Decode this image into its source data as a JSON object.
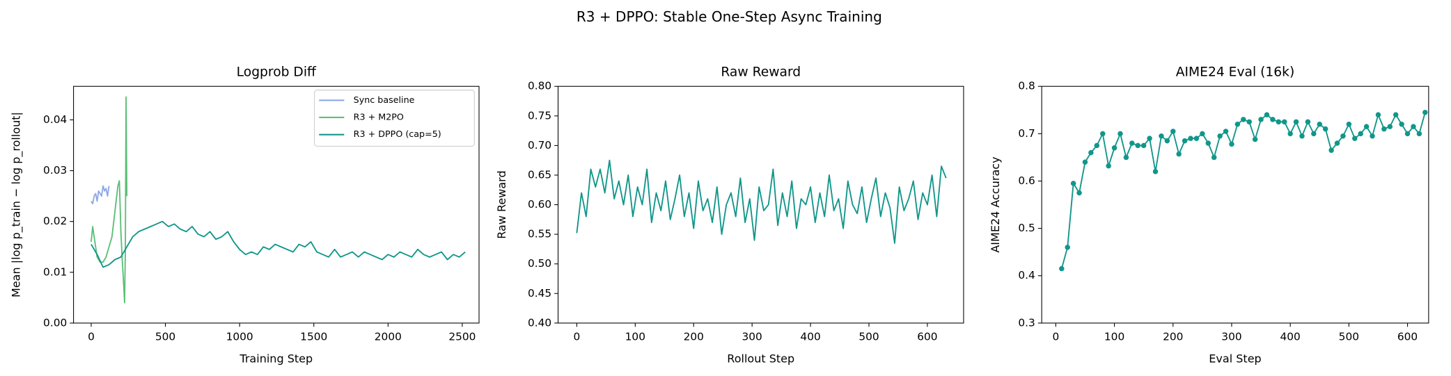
{
  "suptitle": "R3 + DPPO: Stable One-Step Async Training",
  "chart_data": [
    {
      "type": "line",
      "title": "Logprob Diff",
      "xlabel": "Training Step",
      "ylabel": "Mean |log p_train − log p_rollout|",
      "xlim": [
        -119,
        2613
      ],
      "ylim": [
        0,
        0.0466
      ],
      "xticks": [
        0,
        500,
        1000,
        1500,
        2000,
        2500
      ],
      "yticks": [
        {
          "value": 0,
          "label": "0.00"
        },
        0.01,
        0.02,
        0.03,
        0.04
      ],
      "legend": "upper right",
      "series": [
        {
          "name": "Sync baseline",
          "color": "#8fa8e8",
          "x": [
            0,
            10,
            20,
            30,
            40,
            50,
            60,
            70,
            80,
            90,
            100,
            110,
            120
          ],
          "values": [
            0.024,
            0.0235,
            0.025,
            0.0255,
            0.024,
            0.026,
            0.0255,
            0.025,
            0.027,
            0.026,
            0.0265,
            0.025,
            0.027
          ]
        },
        {
          "name": "R3 + M2PO",
          "color": "#5cbf78",
          "x": [
            0,
            10,
            20,
            40,
            60,
            80,
            100,
            120,
            140,
            160,
            180,
            190,
            200,
            210,
            220,
            225,
            230,
            235,
            240
          ],
          "values": [
            0.016,
            0.019,
            0.017,
            0.013,
            0.012,
            0.012,
            0.013,
            0.015,
            0.017,
            0.022,
            0.027,
            0.028,
            0.018,
            0.012,
            0.007,
            0.004,
            0.014,
            0.0445,
            0.025
          ]
        },
        {
          "name": "R3 + DPPO (cap=5)",
          "color": "#11968a",
          "x": [
            0,
            40,
            80,
            120,
            160,
            200,
            240,
            280,
            320,
            360,
            400,
            440,
            480,
            520,
            560,
            600,
            640,
            680,
            720,
            760,
            800,
            840,
            880,
            920,
            960,
            1000,
            1040,
            1080,
            1120,
            1160,
            1200,
            1240,
            1280,
            1320,
            1360,
            1400,
            1440,
            1480,
            1520,
            1560,
            1600,
            1640,
            1680,
            1720,
            1760,
            1800,
            1840,
            1880,
            1920,
            1960,
            2000,
            2040,
            2080,
            2120,
            2160,
            2200,
            2240,
            2280,
            2320,
            2360,
            2400,
            2440,
            2480,
            2520
          ],
          "values": [
            0.0155,
            0.0135,
            0.011,
            0.0115,
            0.0125,
            0.013,
            0.015,
            0.017,
            0.018,
            0.0185,
            0.019,
            0.0195,
            0.02,
            0.019,
            0.0195,
            0.0185,
            0.018,
            0.019,
            0.0175,
            0.017,
            0.018,
            0.0165,
            0.017,
            0.018,
            0.016,
            0.0145,
            0.0135,
            0.014,
            0.0135,
            0.015,
            0.0145,
            0.0155,
            0.015,
            0.0145,
            0.014,
            0.0155,
            0.015,
            0.016,
            0.014,
            0.0135,
            0.013,
            0.0145,
            0.013,
            0.0135,
            0.014,
            0.013,
            0.014,
            0.0135,
            0.013,
            0.0125,
            0.0135,
            0.013,
            0.014,
            0.0135,
            0.013,
            0.0145,
            0.0135,
            0.013,
            0.0135,
            0.014,
            0.0125,
            0.0135,
            0.013,
            0.014
          ]
        }
      ]
    },
    {
      "type": "line",
      "title": "Raw Reward",
      "xlabel": "Rollout Step",
      "ylabel": "Raw Reward",
      "xlim": [
        -32,
        662
      ],
      "ylim": [
        0.4,
        0.8
      ],
      "xticks": [
        0,
        100,
        200,
        300,
        400,
        500,
        600
      ],
      "yticks": [
        {
          "value": 0.4,
          "label": "0.40"
        },
        0.45,
        {
          "value": 0.5,
          "label": "0.50"
        },
        0.55,
        {
          "value": 0.6,
          "label": "0.60"
        },
        0.65,
        {
          "value": 0.7,
          "label": "0.70"
        },
        0.75,
        {
          "value": 0.8,
          "label": "0.80"
        }
      ],
      "series": [
        {
          "color": "#11968a",
          "x": [
            0,
            8,
            16,
            24,
            32,
            40,
            48,
            56,
            64,
            72,
            80,
            88,
            96,
            104,
            112,
            120,
            128,
            136,
            144,
            152,
            160,
            168,
            176,
            184,
            192,
            200,
            208,
            216,
            224,
            232,
            240,
            248,
            256,
            264,
            272,
            280,
            288,
            296,
            304,
            312,
            320,
            328,
            336,
            344,
            352,
            360,
            368,
            376,
            384,
            392,
            400,
            408,
            416,
            424,
            432,
            440,
            448,
            456,
            464,
            472,
            480,
            488,
            496,
            504,
            512,
            520,
            528,
            536,
            544,
            552,
            560,
            568,
            576,
            584,
            592,
            600,
            608,
            616,
            624,
            632
          ],
          "values": [
            0.552,
            0.62,
            0.58,
            0.66,
            0.63,
            0.66,
            0.62,
            0.675,
            0.61,
            0.64,
            0.6,
            0.65,
            0.58,
            0.63,
            0.6,
            0.66,
            0.57,
            0.62,
            0.59,
            0.64,
            0.575,
            0.61,
            0.65,
            0.58,
            0.62,
            0.56,
            0.64,
            0.59,
            0.61,
            0.57,
            0.63,
            0.55,
            0.6,
            0.62,
            0.58,
            0.645,
            0.57,
            0.61,
            0.54,
            0.63,
            0.59,
            0.6,
            0.66,
            0.565,
            0.62,
            0.58,
            0.64,
            0.56,
            0.61,
            0.6,
            0.63,
            0.57,
            0.62,
            0.58,
            0.65,
            0.59,
            0.61,
            0.56,
            0.64,
            0.6,
            0.585,
            0.63,
            0.57,
            0.61,
            0.645,
            0.58,
            0.62,
            0.595,
            0.535,
            0.63,
            0.59,
            0.61,
            0.64,
            0.575,
            0.62,
            0.6,
            0.65,
            0.58,
            0.665,
            0.645
          ]
        }
      ]
    },
    {
      "type": "line",
      "title": "AIME24 Eval (16k)",
      "xlabel": "Eval Step",
      "ylabel": "AIME24 Accuracy",
      "xlim": [
        -24,
        636
      ],
      "ylim": [
        0.3,
        0.8
      ],
      "xticks": [
        0,
        100,
        200,
        300,
        400,
        500,
        600
      ],
      "yticks": [
        0.3,
        0.4,
        0.5,
        0.6,
        0.7,
        0.8
      ],
      "series": [
        {
          "color": "#11968a",
          "marker": "o",
          "x": [
            10,
            20,
            30,
            40,
            50,
            60,
            70,
            80,
            90,
            100,
            110,
            120,
            130,
            140,
            150,
            160,
            170,
            180,
            190,
            200,
            210,
            220,
            230,
            240,
            250,
            260,
            270,
            280,
            290,
            300,
            310,
            320,
            330,
            340,
            350,
            360,
            370,
            380,
            390,
            400,
            410,
            420,
            430,
            440,
            450,
            460,
            470,
            480,
            490,
            500,
            510,
            520,
            530,
            540,
            550,
            560,
            570,
            580,
            590,
            600,
            610,
            620,
            630
          ],
          "values": [
            0.415,
            0.46,
            0.595,
            0.575,
            0.64,
            0.66,
            0.675,
            0.7,
            0.632,
            0.67,
            0.7,
            0.65,
            0.68,
            0.675,
            0.675,
            0.69,
            0.62,
            0.695,
            0.685,
            0.705,
            0.657,
            0.685,
            0.69,
            0.69,
            0.7,
            0.68,
            0.65,
            0.695,
            0.705,
            0.678,
            0.72,
            0.73,
            0.725,
            0.688,
            0.73,
            0.74,
            0.73,
            0.725,
            0.725,
            0.7,
            0.725,
            0.695,
            0.725,
            0.7,
            0.72,
            0.71,
            0.665,
            0.68,
            0.695,
            0.72,
            0.69,
            0.7,
            0.715,
            0.695,
            0.74,
            0.71,
            0.715,
            0.74,
            0.72,
            0.7,
            0.715,
            0.7,
            0.745
          ]
        }
      ]
    }
  ]
}
